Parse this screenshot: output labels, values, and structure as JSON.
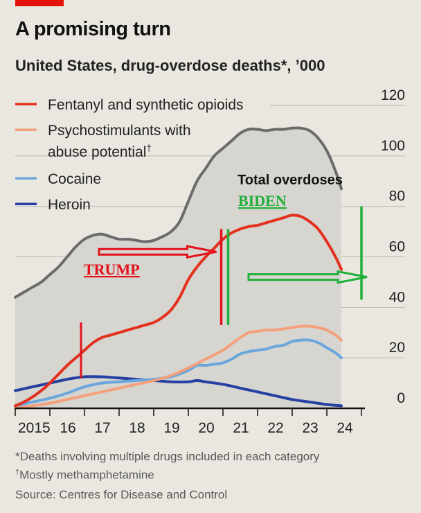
{
  "title": "A promising turn",
  "subtitle": "United States, drug-overdose deaths*, ’000",
  "colors": {
    "brand": "#e3120b",
    "background": "#e9e7df",
    "area": "#d6d5cf",
    "total": "#6b6b6b",
    "fentanyl": "#e3301f",
    "psycho": "#f4a07d",
    "cocaine": "#6aa6dc",
    "heroin": "#2640a3",
    "annotation_trump": "#e3121c",
    "annotation_biden": "#1faf3a"
  },
  "footnotes": {
    "note1": "*Deaths involving multiple drugs included in each category",
    "note2_mark": "†",
    "note2": "Mostly methamphetamine",
    "source": "Source: Centres for Disease and Control"
  },
  "annotations": {
    "total_label": "Total overdoses",
    "trump": "TRUMP",
    "biden": "BIDEN",
    "trump_start": 2016.9,
    "trump_end": 2021.05,
    "biden_start": 2021.05,
    "biden_end": 2025.0
  },
  "chart_data": {
    "type": "area",
    "title": "A promising turn",
    "subtitle": "United States, drug-overdose deaths*, ’000",
    "ylim": [
      0,
      120
    ],
    "y_ticks": [
      0,
      20,
      40,
      60,
      80,
      100,
      120
    ],
    "xlim": [
      2015,
      2025.1
    ],
    "x_ticks": [
      {
        "label": "2015",
        "x": 2015
      },
      {
        "label": "16",
        "x": 2016
      },
      {
        "label": "17",
        "x": 2017
      },
      {
        "label": "18",
        "x": 2018
      },
      {
        "label": "19",
        "x": 2019
      },
      {
        "label": "20",
        "x": 2020
      },
      {
        "label": "21",
        "x": 2021
      },
      {
        "label": "22",
        "x": 2022
      },
      {
        "label": "23",
        "x": 2023
      },
      {
        "label": "24",
        "x": 2024
      }
    ],
    "grid": true,
    "legend_position": "top-left",
    "legend": [
      {
        "label_lines": [
          "Fentanyl and synthetic opioids"
        ],
        "series": "fentanyl"
      },
      {
        "label_lines": [
          "Psychostimulants with",
          "abuse potential"
        ],
        "dagger": "†",
        "series": "psycho"
      },
      {
        "label_lines": [
          "Cocaine"
        ],
        "series": "cocaine"
      },
      {
        "label_lines": [
          "Heroin"
        ],
        "series": "heroin"
      }
    ],
    "series": [
      {
        "key": "total",
        "name": "Total overdoses",
        "fill": true,
        "points": [
          [
            2015.0,
            44
          ],
          [
            2015.25,
            46
          ],
          [
            2015.5,
            48
          ],
          [
            2015.75,
            50
          ],
          [
            2016.0,
            53
          ],
          [
            2016.25,
            56
          ],
          [
            2016.5,
            60
          ],
          [
            2016.75,
            64
          ],
          [
            2017.0,
            67
          ],
          [
            2017.25,
            68.5
          ],
          [
            2017.5,
            69
          ],
          [
            2017.75,
            68
          ],
          [
            2018.0,
            67
          ],
          [
            2018.25,
            67
          ],
          [
            2018.5,
            66.5
          ],
          [
            2018.75,
            66
          ],
          [
            2019.0,
            66.5
          ],
          [
            2019.25,
            68
          ],
          [
            2019.5,
            70
          ],
          [
            2019.75,
            74
          ],
          [
            2020.0,
            82
          ],
          [
            2020.25,
            90
          ],
          [
            2020.5,
            95
          ],
          [
            2020.75,
            100
          ],
          [
            2021.0,
            103
          ],
          [
            2021.25,
            106
          ],
          [
            2021.5,
            109
          ],
          [
            2021.75,
            110.5
          ],
          [
            2022.0,
            110.5
          ],
          [
            2022.25,
            110
          ],
          [
            2022.5,
            110.5
          ],
          [
            2022.75,
            110.5
          ],
          [
            2023.0,
            111
          ],
          [
            2023.25,
            111
          ],
          [
            2023.5,
            110
          ],
          [
            2023.75,
            107
          ],
          [
            2024.0,
            102
          ],
          [
            2024.25,
            94
          ],
          [
            2024.42,
            87
          ]
        ]
      },
      {
        "key": "fentanyl",
        "name": "Fentanyl and synthetic opioids",
        "points": [
          [
            2015.0,
            1
          ],
          [
            2015.25,
            2.5
          ],
          [
            2015.5,
            4.5
          ],
          [
            2015.75,
            7
          ],
          [
            2016.0,
            10
          ],
          [
            2016.25,
            13.5
          ],
          [
            2016.5,
            17
          ],
          [
            2016.75,
            20
          ],
          [
            2017.0,
            23
          ],
          [
            2017.25,
            26
          ],
          [
            2017.5,
            28
          ],
          [
            2017.75,
            29
          ],
          [
            2018.0,
            30
          ],
          [
            2018.25,
            31
          ],
          [
            2018.5,
            32
          ],
          [
            2018.75,
            33
          ],
          [
            2019.0,
            34
          ],
          [
            2019.25,
            36
          ],
          [
            2019.5,
            39
          ],
          [
            2019.75,
            44
          ],
          [
            2020.0,
            51
          ],
          [
            2020.25,
            56
          ],
          [
            2020.5,
            60
          ],
          [
            2020.75,
            63.5
          ],
          [
            2021.0,
            67
          ],
          [
            2021.25,
            69.5
          ],
          [
            2021.5,
            71
          ],
          [
            2021.75,
            72
          ],
          [
            2022.0,
            72.5
          ],
          [
            2022.25,
            73.5
          ],
          [
            2022.5,
            74.5
          ],
          [
            2022.75,
            75.5
          ],
          [
            2023.0,
            76.5
          ],
          [
            2023.25,
            76
          ],
          [
            2023.5,
            74
          ],
          [
            2023.75,
            71
          ],
          [
            2024.0,
            66
          ],
          [
            2024.25,
            60
          ],
          [
            2024.42,
            55
          ]
        ]
      },
      {
        "key": "psycho",
        "name": "Psychostimulants with abuse potential",
        "points": [
          [
            2015.0,
            0
          ],
          [
            2015.5,
            1
          ],
          [
            2016.0,
            2
          ],
          [
            2016.5,
            3.5
          ],
          [
            2017.0,
            5
          ],
          [
            2017.5,
            6.5
          ],
          [
            2018.0,
            8
          ],
          [
            2018.5,
            9.5
          ],
          [
            2019.0,
            11
          ],
          [
            2019.5,
            13
          ],
          [
            2020.0,
            16
          ],
          [
            2020.5,
            19.5
          ],
          [
            2021.0,
            23
          ],
          [
            2021.25,
            25.5
          ],
          [
            2021.5,
            28
          ],
          [
            2021.75,
            30
          ],
          [
            2022.0,
            30.5
          ],
          [
            2022.25,
            31
          ],
          [
            2022.5,
            31
          ],
          [
            2022.75,
            31.5
          ],
          [
            2023.0,
            32
          ],
          [
            2023.25,
            32.5
          ],
          [
            2023.5,
            32.5
          ],
          [
            2023.75,
            32
          ],
          [
            2024.0,
            31
          ],
          [
            2024.25,
            29
          ],
          [
            2024.42,
            27
          ]
        ]
      },
      {
        "key": "cocaine",
        "name": "Cocaine",
        "points": [
          [
            2015.0,
            1
          ],
          [
            2015.5,
            2.5
          ],
          [
            2016.0,
            4
          ],
          [
            2016.5,
            6
          ],
          [
            2017.0,
            8.5
          ],
          [
            2017.5,
            10
          ],
          [
            2018.0,
            10.5
          ],
          [
            2018.5,
            11
          ],
          [
            2019.0,
            11.5
          ],
          [
            2019.5,
            12.5
          ],
          [
            2020.0,
            15
          ],
          [
            2020.25,
            17
          ],
          [
            2020.5,
            17
          ],
          [
            2020.75,
            17.5
          ],
          [
            2021.0,
            18
          ],
          [
            2021.25,
            19.5
          ],
          [
            2021.5,
            21.5
          ],
          [
            2021.75,
            22.5
          ],
          [
            2022.0,
            23
          ],
          [
            2022.25,
            23.5
          ],
          [
            2022.5,
            24.5
          ],
          [
            2022.75,
            25
          ],
          [
            2023.0,
            26.5
          ],
          [
            2023.25,
            27
          ],
          [
            2023.5,
            27
          ],
          [
            2023.75,
            26
          ],
          [
            2024.0,
            24
          ],
          [
            2024.25,
            22
          ],
          [
            2024.42,
            20
          ]
        ]
      },
      {
        "key": "heroin",
        "name": "Heroin",
        "points": [
          [
            2015.0,
            7
          ],
          [
            2015.5,
            8.5
          ],
          [
            2016.0,
            10
          ],
          [
            2016.5,
            11.5
          ],
          [
            2017.0,
            12.5
          ],
          [
            2017.5,
            12.5
          ],
          [
            2018.0,
            12
          ],
          [
            2018.5,
            11.5
          ],
          [
            2019.0,
            11
          ],
          [
            2019.5,
            10.5
          ],
          [
            2020.0,
            10.5
          ],
          [
            2020.25,
            11
          ],
          [
            2020.5,
            10.5
          ],
          [
            2021.0,
            9.5
          ],
          [
            2021.5,
            8
          ],
          [
            2022.0,
            6.5
          ],
          [
            2022.5,
            5
          ],
          [
            2023.0,
            3.5
          ],
          [
            2023.5,
            2.5
          ],
          [
            2024.0,
            1.5
          ],
          [
            2024.42,
            1
          ]
        ]
      }
    ]
  }
}
